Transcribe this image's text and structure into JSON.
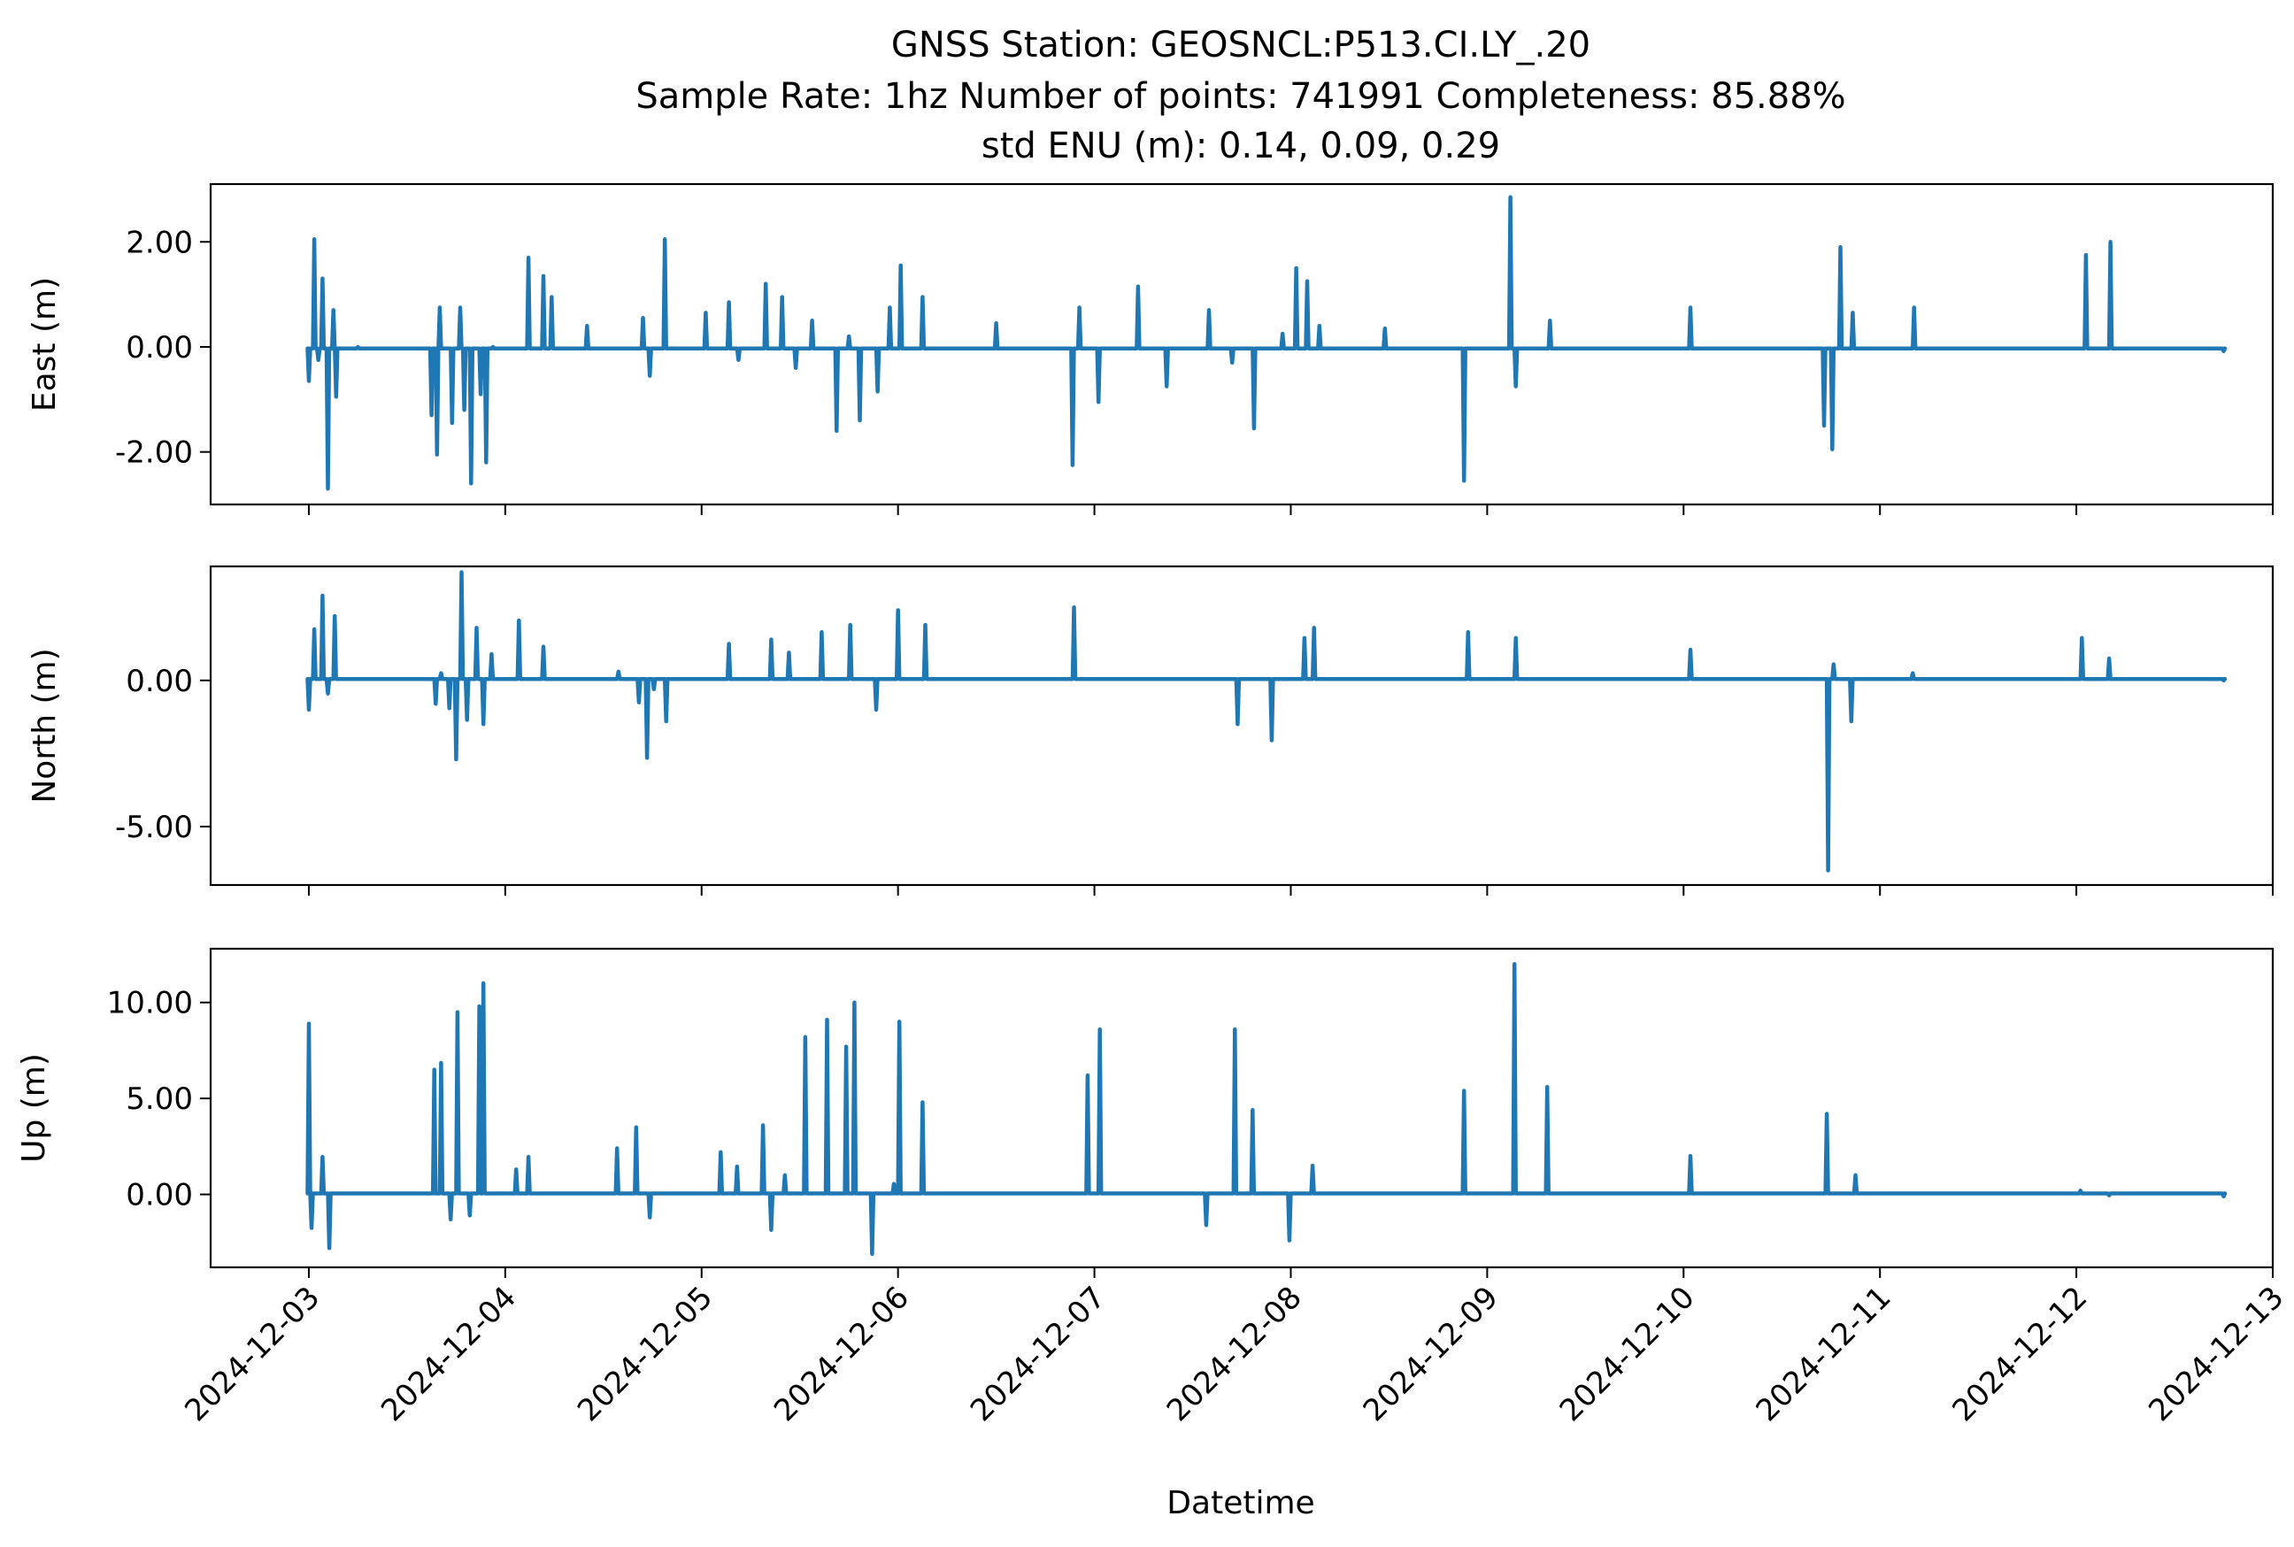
{
  "figure": {
    "title_lines": [
      "GNSS Station: GEOSNCL:P513.CI.LY_.20",
      "Sample Rate: 1hz   Number of points: 741991    Completeness:  85.88%",
      "std ENU (m):  0.14, 0.09, 0.29"
    ],
    "xlabel": "Datetime",
    "line_color": "#1f77b4"
  },
  "chart_data": [
    {
      "type": "line",
      "ylabel": "East (m)",
      "ylim": [
        -3.0,
        3.1
      ],
      "yticks": [
        -2.0,
        0.0,
        2.0
      ],
      "ytick_labels": [
        "-2.00",
        "0.00",
        "2.00"
      ],
      "xlim": [
        "2024-12-02T12:00",
        "2024-12-13T00:00"
      ],
      "xticks": [
        "2024-12-03",
        "2024-12-04",
        "2024-12-05",
        "2024-12-06",
        "2024-12-07",
        "2024-12-08",
        "2024-12-09",
        "2024-12-10",
        "2024-12-11",
        "2024-12-12",
        "2024-12-13"
      ],
      "baseline": -0.03,
      "x": [
        "2024-12-03T00:00",
        "2024-12-03T00:40",
        "2024-12-03T01:10",
        "2024-12-03T01:40",
        "2024-12-03T02:20",
        "2024-12-03T03:00",
        "2024-12-03T03:20",
        "2024-12-03T06:00",
        "2024-12-03T15:00",
        "2024-12-03T15:40",
        "2024-12-03T16:00",
        "2024-12-03T17:30",
        "2024-12-03T18:30",
        "2024-12-03T19:00",
        "2024-12-03T19:50",
        "2024-12-03T21:00",
        "2024-12-03T21:40",
        "2024-12-03T22:30",
        "2024-12-04T02:50",
        "2024-12-04T04:40",
        "2024-12-04T05:40",
        "2024-12-04T10:00",
        "2024-12-04T16:50",
        "2024-12-04T17:40",
        "2024-12-04T19:30",
        "2024-12-05T00:30",
        "2024-12-05T03:20",
        "2024-12-05T04:30",
        "2024-12-05T07:50",
        "2024-12-05T09:50",
        "2024-12-05T11:30",
        "2024-12-05T13:30",
        "2024-12-05T16:30",
        "2024-12-05T18:00",
        "2024-12-05T19:20",
        "2024-12-05T21:30",
        "2024-12-05T23:00",
        "2024-12-06T00:20",
        "2024-12-06T03:00",
        "2024-12-06T12:00",
        "2024-12-06T21:20",
        "2024-12-06T22:10",
        "2024-12-07T00:30",
        "2024-12-07T05:20",
        "2024-12-07T08:50",
        "2024-12-07T14:00",
        "2024-12-07T16:50",
        "2024-12-07T19:30",
        "2024-12-07T23:00",
        "2024-12-08T00:40",
        "2024-12-08T02:00",
        "2024-12-08T03:30",
        "2024-12-08T11:30",
        "2024-12-08T21:10",
        "2024-12-09T02:50",
        "2024-12-09T03:30",
        "2024-12-09T07:40",
        "2024-12-10T00:50",
        "2024-12-10T17:10",
        "2024-12-10T18:10",
        "2024-12-10T19:10",
        "2024-12-10T20:40",
        "2024-12-11T04:10",
        "2024-12-12T01:10",
        "2024-12-12T04:10",
        "2024-12-12T18:00"
      ],
      "values": [
        -0.65,
        2.05,
        -0.25,
        1.3,
        -2.7,
        0.7,
        -0.95,
        0.0,
        -1.3,
        -2.05,
        0.75,
        -1.45,
        0.75,
        -1.2,
        -2.6,
        -0.9,
        -2.2,
        0.0,
        1.7,
        1.35,
        0.95,
        0.4,
        0.55,
        -0.55,
        2.05,
        0.65,
        0.85,
        -0.25,
        1.2,
        0.95,
        -0.4,
        0.5,
        -1.6,
        0.2,
        -1.4,
        -0.85,
        0.75,
        1.55,
        0.95,
        0.45,
        -2.25,
        0.75,
        -1.05,
        1.15,
        -0.75,
        0.7,
        -0.3,
        -1.55,
        0.25,
        1.5,
        1.25,
        0.4,
        0.35,
        -2.55,
        2.85,
        -0.75,
        0.5,
        0.75,
        -1.5,
        -1.95,
        1.9,
        0.65,
        0.75,
        1.75,
        2.0,
        -0.08
      ]
    },
    {
      "type": "line",
      "ylabel": "North (m)",
      "ylim": [
        -7.0,
        3.9
      ],
      "yticks": [
        -5.0,
        0.0
      ],
      "ytick_labels": [
        "-5.00",
        "0.00"
      ],
      "xlim": [
        "2024-12-02T12:00",
        "2024-12-13T00:00"
      ],
      "xticks": [
        "2024-12-03",
        "2024-12-04",
        "2024-12-05",
        "2024-12-06",
        "2024-12-07",
        "2024-12-08",
        "2024-12-09",
        "2024-12-10",
        "2024-12-11",
        "2024-12-12",
        "2024-12-13"
      ],
      "baseline": 0.05,
      "x": [
        "2024-12-03T00:00",
        "2024-12-03T00:40",
        "2024-12-03T01:40",
        "2024-12-03T02:20",
        "2024-12-03T03:10",
        "2024-12-03T15:30",
        "2024-12-03T16:10",
        "2024-12-03T17:10",
        "2024-12-03T18:00",
        "2024-12-03T18:40",
        "2024-12-03T19:20",
        "2024-12-03T20:30",
        "2024-12-03T21:20",
        "2024-12-03T22:20",
        "2024-12-04T01:40",
        "2024-12-04T04:40",
        "2024-12-04T13:50",
        "2024-12-04T16:20",
        "2024-12-04T17:20",
        "2024-12-04T18:10",
        "2024-12-04T19:40",
        "2024-12-05T03:20",
        "2024-12-05T08:30",
        "2024-12-05T10:40",
        "2024-12-05T14:40",
        "2024-12-05T18:10",
        "2024-12-05T21:20",
        "2024-12-06T00:00",
        "2024-12-06T03:20",
        "2024-12-06T21:30",
        "2024-12-07T17:30",
        "2024-12-07T21:40",
        "2024-12-08T01:40",
        "2024-12-08T02:50",
        "2024-12-08T21:40",
        "2024-12-09T03:30",
        "2024-12-10T00:50",
        "2024-12-10T17:40",
        "2024-12-10T18:20",
        "2024-12-10T20:30",
        "2024-12-11T04:00",
        "2024-12-12T00:40",
        "2024-12-12T04:00",
        "2024-12-12T18:00"
      ],
      "values": [
        -1.0,
        1.75,
        2.9,
        -0.45,
        2.2,
        -0.8,
        0.25,
        -0.95,
        -2.7,
        3.7,
        -1.35,
        1.8,
        -1.5,
        0.9,
        2.05,
        1.15,
        0.3,
        -0.75,
        -2.65,
        -0.3,
        -1.4,
        1.25,
        1.4,
        0.95,
        1.65,
        1.9,
        -1.0,
        2.4,
        1.9,
        2.5,
        -1.5,
        -2.05,
        1.45,
        1.8,
        1.65,
        1.45,
        1.05,
        -6.5,
        0.55,
        -1.4,
        0.25,
        1.45,
        0.75,
        0.0
      ]
    },
    {
      "type": "line",
      "ylabel": "Up (m)",
      "ylim": [
        -3.8,
        12.8
      ],
      "yticks": [
        0.0,
        5.0,
        10.0
      ],
      "ytick_labels": [
        "0.00",
        "5.00",
        "10.00"
      ],
      "xlim": [
        "2024-12-02T12:00",
        "2024-12-13T00:00"
      ],
      "xticks": [
        "2024-12-03",
        "2024-12-04",
        "2024-12-05",
        "2024-12-06",
        "2024-12-07",
        "2024-12-08",
        "2024-12-09",
        "2024-12-10",
        "2024-12-11",
        "2024-12-12",
        "2024-12-13"
      ],
      "baseline": 0.05,
      "x": [
        "2024-12-03T00:00",
        "2024-12-03T00:20",
        "2024-12-03T01:40",
        "2024-12-03T02:30",
        "2024-12-03T15:20",
        "2024-12-03T16:10",
        "2024-12-03T17:20",
        "2024-12-03T18:10",
        "2024-12-03T19:40",
        "2024-12-03T20:50",
        "2024-12-03T21:20",
        "2024-12-04T01:20",
        "2024-12-04T02:50",
        "2024-12-04T13:40",
        "2024-12-04T16:00",
        "2024-12-04T17:40",
        "2024-12-05T02:20",
        "2024-12-05T04:20",
        "2024-12-05T07:30",
        "2024-12-05T08:30",
        "2024-12-05T10:10",
        "2024-12-05T12:40",
        "2024-12-05T15:20",
        "2024-12-05T17:40",
        "2024-12-05T18:40",
        "2024-12-05T20:50",
        "2024-12-05T23:30",
        "2024-12-06T00:10",
        "2024-12-06T03:00",
        "2024-12-06T23:10",
        "2024-12-07T00:40",
        "2024-12-07T13:40",
        "2024-12-07T17:10",
        "2024-12-07T19:20",
        "2024-12-07T23:50",
        "2024-12-08T02:40",
        "2024-12-08T21:10",
        "2024-12-09T03:20",
        "2024-12-09T07:20",
        "2024-12-10T00:50",
        "2024-12-10T17:30",
        "2024-12-10T21:00",
        "2024-12-12T00:30",
        "2024-12-12T04:00",
        "2024-12-12T18:00"
      ],
      "values": [
        8.9,
        -1.75,
        1.95,
        -2.8,
        6.5,
        6.85,
        -1.3,
        9.5,
        -1.1,
        9.8,
        11.0,
        1.3,
        1.95,
        2.4,
        3.5,
        -1.2,
        2.2,
        1.45,
        3.6,
        -1.85,
        1.0,
        8.2,
        9.1,
        7.7,
        10.0,
        -3.1,
        0.55,
        9.0,
        4.8,
        6.2,
        8.6,
        -1.6,
        8.6,
        4.4,
        -2.4,
        1.5,
        5.4,
        12.0,
        5.6,
        2.0,
        4.2,
        1.0,
        0.2,
        -0.05,
        -0.1
      ]
    }
  ]
}
